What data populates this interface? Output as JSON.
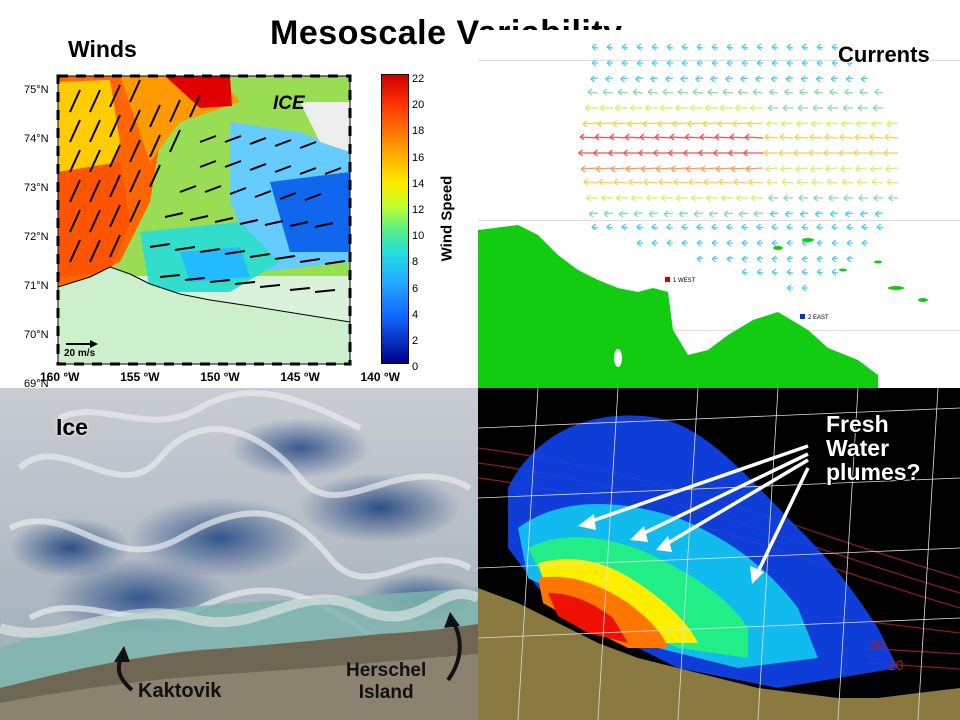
{
  "slide": {
    "title": "Mesoscale Variability"
  },
  "winds_panel": {
    "label": "Winds",
    "ice_label": "ICE",
    "scale_label": "20 m/s",
    "lat_labels": [
      "75°N",
      "74°N",
      "73°N",
      "72°N",
      "71°N",
      "70°N",
      "69°N"
    ],
    "lon_labels": [
      "160 °W",
      "155 °W",
      "150 °W",
      "145 °W",
      "140 °W"
    ],
    "colorbar": {
      "title": "Wind Speed",
      "ticks": [
        "22",
        "20",
        "18",
        "16",
        "14",
        "12",
        "10",
        "8",
        "6",
        "4",
        "2",
        "0"
      ],
      "colors": [
        "#cc0000",
        "#ff3300",
        "#ff7700",
        "#ffbb00",
        "#ffee00",
        "#bbff33",
        "#55ee88",
        "#22dddd",
        "#22aaff",
        "#1166ff",
        "#0033cc",
        "#00008b"
      ]
    }
  },
  "currents_panel": {
    "label": "Currents",
    "station_labels": [
      "1 WEST",
      "2 EAST"
    ]
  },
  "ice_panel": {
    "label": "Ice",
    "place_kaktovik": "Kaktovik",
    "place_herschel_line1": "Herschel",
    "place_herschel_line2": "Island"
  },
  "plumes_panel": {
    "label_line1": "Fresh",
    "label_line2": "Water",
    "label_line3": "plumes?",
    "contour_label_1": "30",
    "contour_label_2": "20"
  },
  "colors": {
    "land_green": "#11cc11",
    "coast_land_satellite": "#7a6a55",
    "ocean_satellite": "#2f4f7f",
    "land_olive": "#8a7a40"
  }
}
